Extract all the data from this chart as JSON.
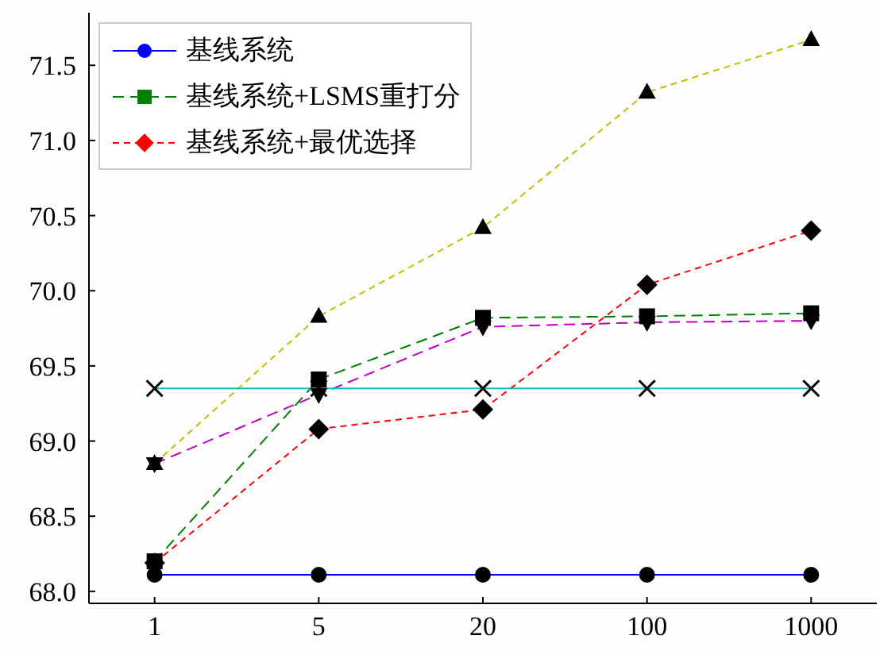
{
  "chart_data": {
    "type": "line",
    "categories": [
      "1",
      "5",
      "20",
      "100",
      "1000"
    ],
    "series": [
      {
        "name": "基线系统",
        "color": "#0000ff",
        "marker": "circle",
        "line_style": "solid",
        "values": [
          68.11,
          68.11,
          68.11,
          68.11,
          68.11
        ]
      },
      {
        "name": "基线系统+LSMS重打分",
        "color": "#008000",
        "marker": "square",
        "line_style": "dashed",
        "values": [
          68.2,
          69.41,
          69.82,
          69.83,
          69.85
        ]
      },
      {
        "name": "基线系统+最优选择",
        "color": "#ff0000",
        "marker": "diamond",
        "line_style": "dotted",
        "values": [
          68.19,
          69.08,
          69.21,
          70.04,
          70.4
        ]
      },
      {
        "color": "#bfbf00",
        "marker": "triangle",
        "line_style": "dotted",
        "values": [
          68.85,
          69.83,
          70.42,
          71.32,
          71.67
        ]
      },
      {
        "color": "#bf00bf",
        "marker": "triangle-down",
        "line_style": "dashed",
        "values": [
          68.85,
          69.31,
          69.76,
          69.79,
          69.8
        ]
      },
      {
        "color": "#00bfbf",
        "marker": "cross",
        "line_style": "solid",
        "values": [
          69.35,
          69.35,
          69.35,
          69.35,
          69.35
        ]
      }
    ],
    "ylim": [
      67.92,
      71.85
    ],
    "yticks": [
      {
        "value": 68,
        "label": "68.0"
      },
      {
        "value": 68.5,
        "label": "68.5"
      },
      {
        "value": 69,
        "label": "69.0"
      },
      {
        "value": 69.5,
        "label": "69.5"
      },
      {
        "value": 70,
        "label": "70.0"
      },
      {
        "value": 70.5,
        "label": "70.5"
      },
      {
        "value": 71,
        "label": "71.0"
      },
      {
        "value": 71.5,
        "label": "71.5"
      }
    ],
    "grid": false,
    "legend": "top left"
  }
}
